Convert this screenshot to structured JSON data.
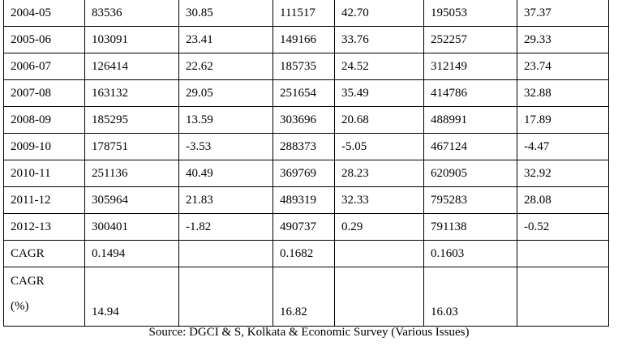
{
  "table": {
    "rows": [
      [
        [
          "2004-05"
        ],
        "83536",
        "30.85",
        "111517",
        "42.70",
        "195053",
        "37.37"
      ],
      [
        [
          "2005-06"
        ],
        "103091",
        "23.41",
        "149166",
        "33.76",
        "252257",
        "29.33"
      ],
      [
        [
          "2006-07"
        ],
        "126414",
        "22.62",
        "185735",
        "24.52",
        "312149",
        "23.74"
      ],
      [
        [
          "2007-08"
        ],
        "163132",
        "29.05",
        "251654",
        "35.49",
        "414786",
        "32.88"
      ],
      [
        [
          "2008-09"
        ],
        "185295",
        "13.59",
        "303696",
        "20.68",
        "488991",
        "17.89"
      ],
      [
        [
          "2009-10"
        ],
        "178751",
        "-3.53",
        "288373",
        "-5.05",
        "467124",
        "-4.47"
      ],
      [
        [
          "2010-11"
        ],
        "251136",
        "40.49",
        "369769",
        "28.23",
        "620905",
        "32.92"
      ],
      [
        [
          "2011-12"
        ],
        "305964",
        "21.83",
        "489319",
        "32.33",
        "795283",
        "28.08"
      ],
      [
        [
          "2012-13"
        ],
        "300401",
        "-1.82",
        "490737",
        "0.29",
        "791138",
        "-0.52"
      ],
      [
        [
          "CAGR"
        ],
        "0.1494",
        null,
        "0.1682",
        null,
        "0.1603",
        null
      ],
      [
        [
          "CAGR",
          "(%)"
        ],
        "14.94",
        null,
        "16.82",
        null,
        "16.03",
        null
      ]
    ]
  },
  "source": "Source: DGCI & S, Kolkata & Economic Survey (Various Issues)"
}
